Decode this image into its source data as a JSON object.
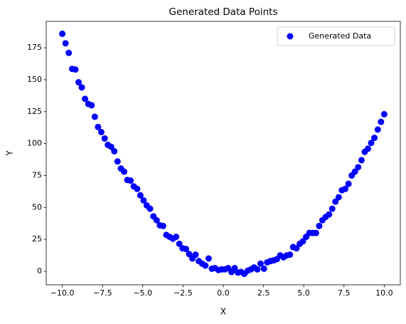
{
  "chart_data": {
    "type": "scatter",
    "title": "Generated Data Points",
    "xlabel": "X",
    "ylabel": "Y",
    "series": [
      {
        "name": "Generated Data",
        "color": "#0000ff",
        "x": [
          -10.0,
          -9.8,
          -9.6,
          -9.39,
          -9.19,
          -8.99,
          -8.79,
          -8.59,
          -8.38,
          -8.18,
          -7.98,
          -7.78,
          -7.58,
          -7.37,
          -7.17,
          -6.97,
          -6.77,
          -6.57,
          -6.36,
          -6.16,
          -5.96,
          -5.76,
          -5.56,
          -5.35,
          -5.15,
          -4.95,
          -4.75,
          -4.55,
          -4.34,
          -4.14,
          -3.94,
          -3.74,
          -3.54,
          -3.33,
          -3.13,
          -2.93,
          -2.73,
          -2.53,
          -2.32,
          -2.12,
          -1.92,
          -1.72,
          -1.52,
          -1.31,
          -1.11,
          -0.91,
          -0.71,
          -0.51,
          -0.3,
          -0.1,
          0.1,
          0.3,
          0.51,
          0.71,
          0.91,
          1.11,
          1.31,
          1.52,
          1.72,
          1.92,
          2.12,
          2.32,
          2.53,
          2.73,
          2.93,
          3.13,
          3.33,
          3.54,
          3.74,
          3.94,
          4.14,
          4.34,
          4.55,
          4.75,
          4.95,
          5.15,
          5.35,
          5.56,
          5.76,
          5.96,
          6.16,
          6.36,
          6.57,
          6.77,
          6.97,
          7.17,
          7.37,
          7.58,
          7.78,
          7.98,
          8.18,
          8.38,
          8.59,
          8.79,
          8.99,
          9.19,
          9.39,
          9.6,
          9.8,
          10.0
        ],
        "values": [
          186,
          178.5,
          171,
          158.5,
          158,
          148,
          144,
          135,
          131,
          130,
          121,
          113,
          109,
          104,
          99,
          97.5,
          94,
          86,
          80.5,
          78,
          71.5,
          71,
          66.5,
          64.5,
          59.5,
          55.5,
          51.5,
          49,
          43,
          40,
          36,
          35.5,
          28.5,
          27,
          25.5,
          27,
          21.5,
          18,
          17.5,
          13.5,
          10,
          13,
          8,
          6,
          4.5,
          10,
          2,
          2.5,
          1,
          1.5,
          1.5,
          2.5,
          -0.5,
          2.5,
          -1,
          -0.5,
          -2,
          0.5,
          1.5,
          3,
          1.5,
          6,
          2,
          7,
          8,
          8.5,
          9.5,
          12.5,
          11,
          12.5,
          13,
          19,
          18,
          21.5,
          23.5,
          27,
          30,
          30,
          30,
          35.5,
          40,
          42.5,
          44.5,
          49,
          54.5,
          58,
          63.5,
          64.5,
          68.5,
          75,
          78,
          81.5,
          87,
          93.5,
          96,
          100.5,
          104.5,
          111,
          117,
          123
        ]
      }
    ],
    "xlim": [
      -11.0,
      11.0
    ],
    "ylim": [
      -10.6,
      195.7
    ],
    "xticks": [
      {
        "value": -10,
        "label": "−10.0"
      },
      {
        "value": -7.5,
        "label": "−7.5"
      },
      {
        "value": -5,
        "label": "−5.0"
      },
      {
        "value": -2.5,
        "label": "−2.5"
      },
      {
        "value": 0,
        "label": "0.0"
      },
      2.5,
      {
        "value": 5,
        "label": "5.0"
      },
      7.5,
      {
        "value": 10,
        "label": "10.0"
      }
    ],
    "yticks": [
      0,
      25,
      50,
      75,
      100,
      125,
      150,
      175
    ],
    "legend": "upper right",
    "grid": false
  }
}
